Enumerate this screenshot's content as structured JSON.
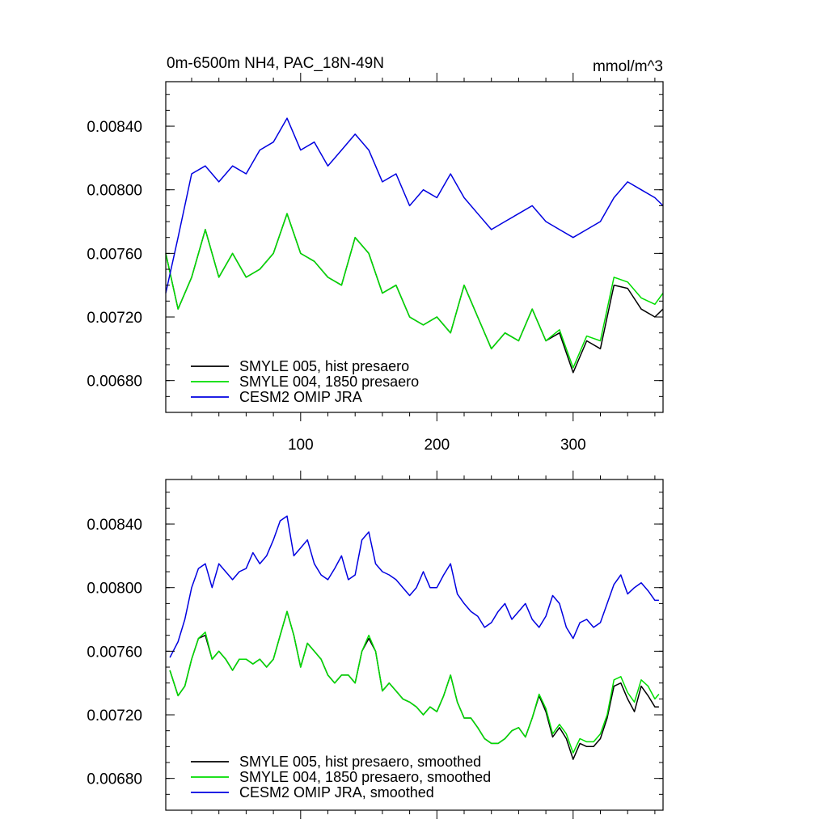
{
  "figure": {
    "title_left": "0m-6500m NH4, PAC_18N-49N",
    "title_right": "mmol/m^3"
  },
  "chart_data": [
    {
      "type": "line",
      "x_tick_labels": [
        "100",
        "200",
        "300"
      ],
      "x_ticks": [
        100,
        200,
        300
      ],
      "xlim": [
        1,
        366
      ],
      "ylim": [
        0.0066,
        0.00868
      ],
      "y_ticks": [
        0.0068,
        0.0072,
        0.0076,
        0.008,
        0.0084
      ],
      "y_tick_labels": [
        "0.00680",
        "0.00720",
        "0.00760",
        "0.00800",
        "0.00840"
      ],
      "legend_position": "bottom-left",
      "series": [
        {
          "name": "SMYLE 005, hist presaero",
          "color": "#000000",
          "x": [
            1,
            10,
            20,
            30,
            40,
            50,
            60,
            70,
            80,
            90,
            100,
            110,
            120,
            130,
            140,
            150,
            160,
            170,
            180,
            190,
            200,
            210,
            220,
            230,
            240,
            250,
            260,
            270,
            280,
            290,
            300,
            310,
            320,
            330,
            340,
            350,
            360,
            366
          ],
          "y": [
            0.0076,
            0.00725,
            0.00745,
            0.00775,
            0.00745,
            0.0076,
            0.00745,
            0.0075,
            0.0076,
            0.00785,
            0.0076,
            0.00755,
            0.00745,
            0.0074,
            0.0077,
            0.0076,
            0.00735,
            0.0074,
            0.0072,
            0.00715,
            0.0072,
            0.0071,
            0.0074,
            0.0072,
            0.007,
            0.0071,
            0.00705,
            0.00725,
            0.00705,
            0.0071,
            0.00685,
            0.00705,
            0.007,
            0.0074,
            0.00738,
            0.00725,
            0.0072,
            0.00725
          ]
        },
        {
          "name": "SMYLE 004, 1850 presaero",
          "color": "#00dd00",
          "x": [
            1,
            10,
            20,
            30,
            40,
            50,
            60,
            70,
            80,
            90,
            100,
            110,
            120,
            130,
            140,
            150,
            160,
            170,
            180,
            190,
            200,
            210,
            220,
            230,
            240,
            250,
            260,
            270,
            280,
            290,
            300,
            310,
            320,
            330,
            340,
            350,
            360,
            366
          ],
          "y": [
            0.0076,
            0.00725,
            0.00745,
            0.00775,
            0.00745,
            0.0076,
            0.00745,
            0.0075,
            0.0076,
            0.00785,
            0.0076,
            0.00755,
            0.00745,
            0.0074,
            0.0077,
            0.0076,
            0.00735,
            0.0074,
            0.0072,
            0.00715,
            0.0072,
            0.0071,
            0.0074,
            0.0072,
            0.007,
            0.0071,
            0.00705,
            0.00725,
            0.00705,
            0.00712,
            0.00688,
            0.00708,
            0.00705,
            0.00745,
            0.00742,
            0.00732,
            0.00728,
            0.00735
          ]
        },
        {
          "name": "CESM2 OMIP JRA",
          "color": "#0000e0",
          "x": [
            1,
            10,
            20,
            30,
            40,
            50,
            60,
            70,
            80,
            90,
            100,
            110,
            120,
            130,
            140,
            150,
            160,
            170,
            180,
            190,
            200,
            210,
            220,
            230,
            240,
            250,
            260,
            270,
            280,
            290,
            300,
            310,
            320,
            330,
            340,
            350,
            360,
            366
          ],
          "y": [
            0.00735,
            0.0077,
            0.0081,
            0.00815,
            0.00805,
            0.00815,
            0.0081,
            0.00825,
            0.0083,
            0.00845,
            0.00825,
            0.0083,
            0.00815,
            0.00825,
            0.00835,
            0.00825,
            0.00805,
            0.0081,
            0.0079,
            0.008,
            0.00795,
            0.0081,
            0.00795,
            0.00785,
            0.00775,
            0.0078,
            0.00785,
            0.0079,
            0.0078,
            0.00775,
            0.0077,
            0.00775,
            0.0078,
            0.00795,
            0.00805,
            0.008,
            0.00795,
            0.0079
          ]
        }
      ]
    },
    {
      "type": "line",
      "x_ticks": [
        100,
        200,
        300
      ],
      "xlim": [
        1,
        366
      ],
      "ylim": [
        0.0066,
        0.00868
      ],
      "y_ticks": [
        0.0068,
        0.0072,
        0.0076,
        0.008,
        0.0084
      ],
      "y_tick_labels": [
        "0.00680",
        "0.00720",
        "0.00760",
        "0.00800",
        "0.00840"
      ],
      "legend_position": "bottom-left",
      "series": [
        {
          "name": "SMYLE 005, hist presaero, smoothed",
          "color": "#000000",
          "x": [
            4,
            10,
            15,
            20,
            25,
            30,
            35,
            40,
            45,
            50,
            55,
            60,
            65,
            70,
            75,
            80,
            85,
            90,
            95,
            100,
            105,
            110,
            115,
            120,
            125,
            130,
            135,
            140,
            145,
            150,
            155,
            160,
            165,
            170,
            175,
            180,
            185,
            190,
            195,
            200,
            205,
            210,
            215,
            220,
            225,
            230,
            235,
            240,
            245,
            250,
            255,
            260,
            265,
            270,
            275,
            280,
            285,
            290,
            295,
            300,
            305,
            310,
            315,
            320,
            325,
            330,
            335,
            340,
            345,
            350,
            355,
            360,
            363
          ],
          "y": [
            0.00748,
            0.00732,
            0.00738,
            0.00755,
            0.00768,
            0.0077,
            0.00755,
            0.0076,
            0.00755,
            0.00748,
            0.00755,
            0.00755,
            0.00752,
            0.00755,
            0.0075,
            0.00755,
            0.0077,
            0.00785,
            0.0077,
            0.0075,
            0.00765,
            0.0076,
            0.00755,
            0.00745,
            0.0074,
            0.00745,
            0.00745,
            0.0074,
            0.0076,
            0.00768,
            0.0076,
            0.00735,
            0.0074,
            0.00735,
            0.0073,
            0.00728,
            0.00725,
            0.0072,
            0.00725,
            0.00722,
            0.00732,
            0.00745,
            0.00728,
            0.00718,
            0.00718,
            0.00712,
            0.00705,
            0.00702,
            0.00702,
            0.00705,
            0.0071,
            0.00712,
            0.00706,
            0.00718,
            0.00732,
            0.00722,
            0.00706,
            0.00712,
            0.00705,
            0.00692,
            0.00702,
            0.007,
            0.007,
            0.00705,
            0.00718,
            0.00738,
            0.0074,
            0.0073,
            0.00722,
            0.00738,
            0.00732,
            0.00725,
            0.00725
          ]
        },
        {
          "name": "SMYLE 004, 1850 presaero, smoothed",
          "color": "#00dd00",
          "x": [
            4,
            10,
            15,
            20,
            25,
            30,
            35,
            40,
            45,
            50,
            55,
            60,
            65,
            70,
            75,
            80,
            85,
            90,
            95,
            100,
            105,
            110,
            115,
            120,
            125,
            130,
            135,
            140,
            145,
            150,
            155,
            160,
            165,
            170,
            175,
            180,
            185,
            190,
            195,
            200,
            205,
            210,
            215,
            220,
            225,
            230,
            235,
            240,
            245,
            250,
            255,
            260,
            265,
            270,
            275,
            280,
            285,
            290,
            295,
            300,
            305,
            310,
            315,
            320,
            325,
            330,
            335,
            340,
            345,
            350,
            355,
            360,
            363
          ],
          "y": [
            0.00748,
            0.00732,
            0.00738,
            0.00755,
            0.00768,
            0.00772,
            0.00755,
            0.0076,
            0.00755,
            0.00748,
            0.00755,
            0.00755,
            0.00752,
            0.00755,
            0.0075,
            0.00755,
            0.0077,
            0.00785,
            0.0077,
            0.0075,
            0.00765,
            0.0076,
            0.00755,
            0.00745,
            0.0074,
            0.00745,
            0.00745,
            0.0074,
            0.0076,
            0.0077,
            0.0076,
            0.00735,
            0.0074,
            0.00735,
            0.0073,
            0.00728,
            0.00725,
            0.0072,
            0.00725,
            0.00722,
            0.00732,
            0.00745,
            0.00728,
            0.00718,
            0.00718,
            0.00712,
            0.00705,
            0.00702,
            0.00702,
            0.00705,
            0.0071,
            0.00712,
            0.00706,
            0.00718,
            0.00733,
            0.00724,
            0.00708,
            0.00714,
            0.00708,
            0.00696,
            0.00705,
            0.00703,
            0.00703,
            0.00708,
            0.0072,
            0.00742,
            0.00744,
            0.00734,
            0.00728,
            0.00742,
            0.00738,
            0.0073,
            0.00733
          ]
        },
        {
          "name": "CESM2 OMIP JRA, smoothed",
          "color": "#0000e0",
          "x": [
            4,
            10,
            15,
            20,
            25,
            30,
            35,
            40,
            45,
            50,
            55,
            60,
            65,
            70,
            75,
            80,
            85,
            90,
            95,
            100,
            105,
            110,
            115,
            120,
            125,
            130,
            135,
            140,
            145,
            150,
            155,
            160,
            165,
            170,
            175,
            180,
            185,
            190,
            195,
            200,
            205,
            210,
            215,
            220,
            225,
            230,
            235,
            240,
            245,
            250,
            255,
            260,
            265,
            270,
            275,
            280,
            285,
            290,
            295,
            300,
            305,
            310,
            315,
            320,
            325,
            330,
            335,
            340,
            345,
            350,
            355,
            360,
            363
          ],
          "y": [
            0.00756,
            0.00766,
            0.0078,
            0.008,
            0.00812,
            0.00815,
            0.008,
            0.00815,
            0.0081,
            0.00805,
            0.0081,
            0.00812,
            0.00822,
            0.00815,
            0.0082,
            0.0083,
            0.00842,
            0.00845,
            0.0082,
            0.00825,
            0.0083,
            0.00815,
            0.00808,
            0.00805,
            0.00812,
            0.0082,
            0.00805,
            0.00808,
            0.0083,
            0.00835,
            0.00815,
            0.0081,
            0.00808,
            0.00805,
            0.008,
            0.00795,
            0.008,
            0.0081,
            0.008,
            0.008,
            0.00808,
            0.00815,
            0.00796,
            0.0079,
            0.00785,
            0.00782,
            0.00775,
            0.00778,
            0.00785,
            0.0079,
            0.0078,
            0.00785,
            0.0079,
            0.0078,
            0.00775,
            0.00782,
            0.00795,
            0.0079,
            0.00775,
            0.00768,
            0.00778,
            0.0078,
            0.00775,
            0.00778,
            0.0079,
            0.00802,
            0.00808,
            0.00796,
            0.008,
            0.00803,
            0.00798,
            0.00792,
            0.00792
          ]
        }
      ]
    }
  ]
}
